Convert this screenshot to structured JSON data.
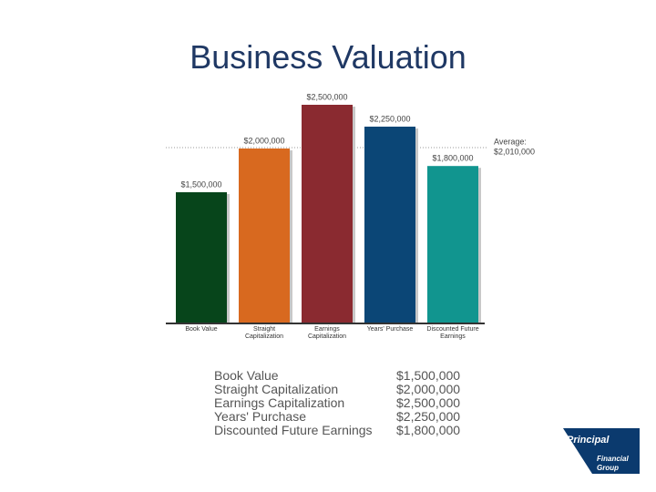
{
  "chart_data": {
    "type": "bar",
    "title": "Business Valuation",
    "categories": [
      "Book Value",
      "Straight Capitalization",
      "Earnings Capitalization",
      "Years' Purchase",
      "Discounted Future Earnings"
    ],
    "values": [
      1500000,
      2000000,
      2500000,
      2250000,
      1800000
    ],
    "value_labels": [
      "$1,500,000",
      "$2,000,000",
      "$2,500,000",
      "$2,250,000",
      "$1,800,000"
    ],
    "colors": [
      "#07451b",
      "#d8691f",
      "#8a2a30",
      "#0b4676",
      "#11958f"
    ],
    "ylim": [
      0,
      2500000
    ],
    "average": {
      "value": 2010000,
      "label_lines": [
        "Average:",
        "$2,010,000"
      ]
    }
  },
  "logo": {
    "name": "Principal",
    "subtitle_lines": [
      "Financial",
      "Group"
    ]
  }
}
